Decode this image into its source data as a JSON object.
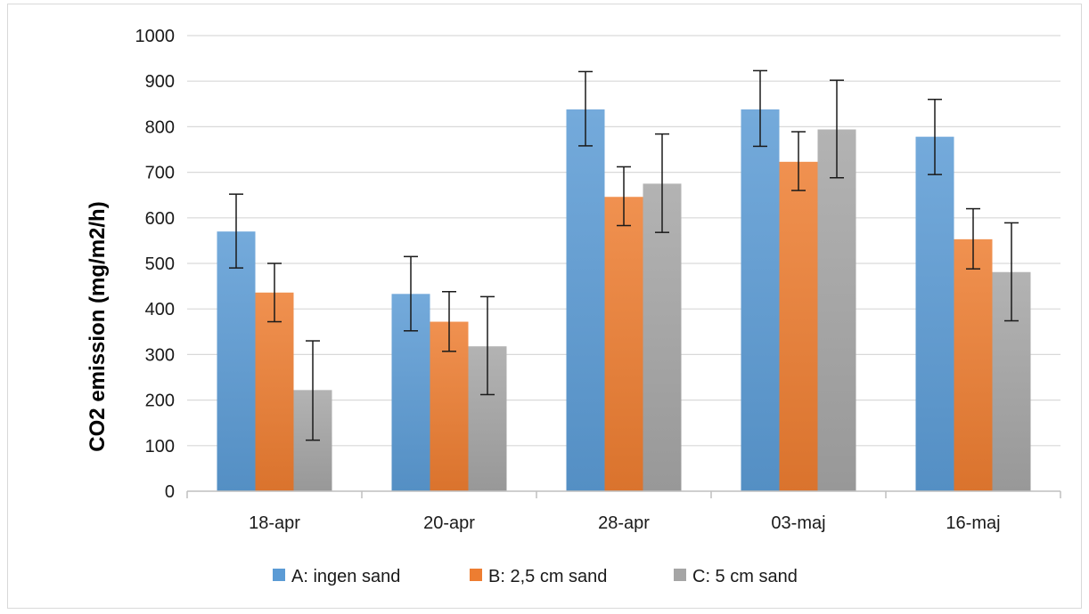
{
  "chart_data": {
    "type": "bar",
    "title": "",
    "xlabel": "",
    "ylabel": "CO2 emission (mg/m2/h)",
    "ylim": [
      0,
      1000
    ],
    "yticks": [
      0,
      100,
      200,
      300,
      400,
      500,
      600,
      700,
      800,
      900,
      1000
    ],
    "grid": true,
    "legend_position": "bottom",
    "categories": [
      "18-apr",
      "20-apr",
      "28-apr",
      "03-maj",
      "16-maj"
    ],
    "series": [
      {
        "name": "A: ingen sand",
        "color": "#5b9bd5",
        "values": [
          570,
          433,
          838,
          838,
          778
        ],
        "error_low": [
          490,
          352,
          758,
          757,
          695
        ],
        "error_high": [
          652,
          515,
          921,
          923,
          860
        ]
      },
      {
        "name": "B: 2,5 cm sand",
        "color": "#ed7d31",
        "values": [
          436,
          372,
          646,
          723,
          553
        ],
        "error_low": [
          372,
          307,
          583,
          660,
          488
        ],
        "error_high": [
          500,
          438,
          712,
          789,
          620
        ]
      },
      {
        "name": "C: 5 cm sand",
        "color": "#a5a5a5",
        "values": [
          222,
          318,
          675,
          794,
          481
        ],
        "error_low": [
          112,
          212,
          568,
          688,
          374
        ],
        "error_high": [
          330,
          427,
          784,
          902,
          589
        ]
      }
    ]
  }
}
